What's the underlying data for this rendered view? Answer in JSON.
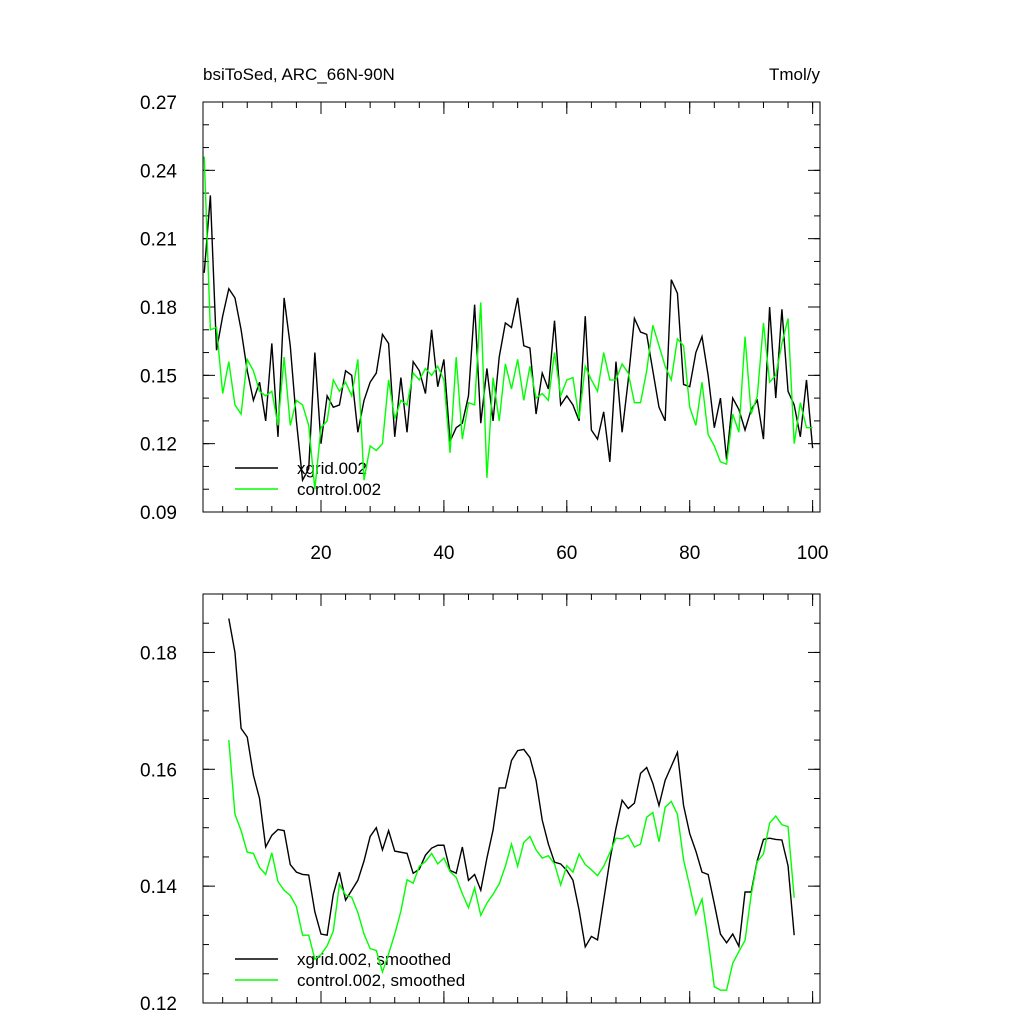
{
  "chart_data": [
    {
      "type": "line",
      "title": "bsiToSed, ARC_66N-90N",
      "right_title": "Tmol/y",
      "x": [
        1,
        2,
        3,
        4,
        5,
        6,
        7,
        8,
        9,
        10,
        11,
        12,
        13,
        14,
        15,
        16,
        17,
        18,
        19,
        20,
        21,
        22,
        23,
        24,
        25,
        26,
        27,
        28,
        29,
        30,
        31,
        32,
        33,
        34,
        35,
        36,
        37,
        38,
        39,
        40,
        41,
        42,
        43,
        44,
        45,
        46,
        47,
        48,
        49,
        50,
        51,
        52,
        53,
        54,
        55,
        56,
        57,
        58,
        59,
        60,
        61,
        62,
        63,
        64,
        65,
        66,
        67,
        68,
        69,
        70,
        71,
        72,
        73,
        74,
        75,
        76,
        77,
        78,
        79,
        80,
        81,
        82,
        83,
        84,
        85,
        86,
        87,
        88,
        89,
        90,
        91,
        92,
        93,
        94,
        95,
        96,
        97,
        98,
        99,
        100
      ],
      "series": [
        {
          "name": "xgrid.002",
          "color": "#000000",
          "values": [
            0.195,
            0.229,
            0.161,
            0.176,
            0.188,
            0.184,
            0.17,
            0.152,
            0.139,
            0.147,
            0.13,
            0.164,
            0.123,
            0.184,
            0.163,
            0.13,
            0.104,
            0.109,
            0.16,
            0.12,
            0.141,
            0.136,
            0.137,
            0.152,
            0.15,
            0.125,
            0.139,
            0.147,
            0.151,
            0.168,
            0.164,
            0.123,
            0.149,
            0.125,
            0.156,
            0.152,
            0.142,
            0.17,
            0.145,
            0.157,
            0.121,
            0.127,
            0.129,
            0.141,
            0.181,
            0.129,
            0.153,
            0.13,
            0.158,
            0.173,
            0.171,
            0.184,
            0.163,
            0.162,
            0.133,
            0.151,
            0.144,
            0.174,
            0.137,
            0.141,
            0.137,
            0.13,
            0.176,
            0.126,
            0.122,
            0.134,
            0.112,
            0.156,
            0.125,
            0.148,
            0.175,
            0.169,
            0.168,
            0.152,
            0.136,
            0.13,
            0.192,
            0.186,
            0.146,
            0.145,
            0.16,
            0.167,
            0.15,
            0.127,
            0.14,
            0.113,
            0.14,
            0.135,
            0.126,
            0.135,
            0.139,
            0.122,
            0.18,
            0.14,
            0.179,
            0.143,
            0.137,
            0.123,
            0.148,
            0.118
          ]
        },
        {
          "name": "control.002",
          "color": "#00ff00",
          "values": [
            0.246,
            0.17,
            0.171,
            0.142,
            0.156,
            0.137,
            0.133,
            0.157,
            0.152,
            0.143,
            0.141,
            0.143,
            0.128,
            0.158,
            0.128,
            0.139,
            0.137,
            0.128,
            0.1,
            0.127,
            0.13,
            0.148,
            0.143,
            0.147,
            0.141,
            0.157,
            0.104,
            0.119,
            0.117,
            0.12,
            0.148,
            0.131,
            0.139,
            0.137,
            0.151,
            0.148,
            0.153,
            0.15,
            0.154,
            0.148,
            0.116,
            0.158,
            0.122,
            0.138,
            0.137,
            0.182,
            0.105,
            0.149,
            0.13,
            0.155,
            0.144,
            0.157,
            0.139,
            0.154,
            0.14,
            0.142,
            0.139,
            0.16,
            0.141,
            0.148,
            0.149,
            0.131,
            0.154,
            0.148,
            0.143,
            0.16,
            0.148,
            0.148,
            0.155,
            0.151,
            0.138,
            0.138,
            0.152,
            0.172,
            0.163,
            0.154,
            0.148,
            0.166,
            0.163,
            0.136,
            0.128,
            0.147,
            0.124,
            0.119,
            0.112,
            0.111,
            0.133,
            0.125,
            0.167,
            0.133,
            0.141,
            0.173,
            0.147,
            0.15,
            0.164,
            0.175,
            0.12,
            0.138,
            0.127,
            0.127
          ]
        }
      ],
      "xlim": [
        0.8,
        101.2
      ],
      "ylim": [
        0.09,
        0.27
      ],
      "xticks": [
        20,
        40,
        60,
        80,
        100
      ],
      "yticks": [
        0.09,
        0.12,
        0.15,
        0.18,
        0.21,
        0.24,
        0.27
      ],
      "xtick_labels": true,
      "legend": "lower left"
    },
    {
      "type": "line",
      "x": [
        5,
        6,
        7,
        8,
        9,
        10,
        11,
        12,
        13,
        14,
        15,
        16,
        17,
        18,
        19,
        20,
        21,
        22,
        23,
        24,
        25,
        26,
        27,
        28,
        29,
        30,
        31,
        32,
        33,
        34,
        35,
        36,
        37,
        38,
        39,
        40,
        41,
        42,
        43,
        44,
        45,
        46,
        47,
        48,
        49,
        50,
        51,
        52,
        53,
        54,
        55,
        56,
        57,
        58,
        59,
        60,
        61,
        62,
        63,
        64,
        65,
        66,
        67,
        68,
        69,
        70,
        71,
        72,
        73,
        74,
        75,
        76,
        77,
        78,
        79,
        80,
        81,
        82,
        83,
        84,
        85,
        86,
        87,
        88,
        89,
        90,
        91,
        92,
        93,
        94,
        95,
        96,
        97
      ],
      "series": [
        {
          "name": "xgrid.002, smoothed",
          "color": "#000000",
          "values": [
            0.1858,
            0.18,
            0.167,
            0.1655,
            0.159,
            0.155,
            0.1467,
            0.1487,
            0.1497,
            0.1495,
            0.1437,
            0.1424,
            0.142,
            0.1419,
            0.1356,
            0.1318,
            0.1316,
            0.1386,
            0.1424,
            0.1376,
            0.1393,
            0.141,
            0.1443,
            0.1485,
            0.15,
            0.1462,
            0.1495,
            0.146,
            0.1458,
            0.1456,
            0.1422,
            0.1429,
            0.1453,
            0.1465,
            0.147,
            0.147,
            0.1427,
            0.1422,
            0.1467,
            0.141,
            0.142,
            0.1393,
            0.1448,
            0.1496,
            0.1568,
            0.1568,
            0.1615,
            0.1632,
            0.1634,
            0.162,
            0.1581,
            0.1513,
            0.1472,
            0.1441,
            0.1438,
            0.1427,
            0.141,
            0.1359,
            0.1296,
            0.1314,
            0.1308,
            0.1376,
            0.1444,
            0.1499,
            0.1547,
            0.1533,
            0.1542,
            0.1593,
            0.1603,
            0.1576,
            0.1538,
            0.1581,
            0.1605,
            0.1629,
            0.1538,
            0.149,
            0.146,
            0.1424,
            0.142,
            0.137,
            0.1318,
            0.1303,
            0.1318,
            0.1297,
            0.139,
            0.139,
            0.1444,
            0.148,
            0.1482,
            0.148,
            0.1479,
            0.1435,
            0.1316
          ]
        },
        {
          "name": "control.002, smoothed",
          "color": "#00ff00",
          "values": [
            0.165,
            0.1523,
            0.1495,
            0.1458,
            0.1456,
            0.1432,
            0.142,
            0.1457,
            0.1408,
            0.1393,
            0.1384,
            0.1365,
            0.1316,
            0.1316,
            0.1275,
            0.1283,
            0.1298,
            0.1323,
            0.1403,
            0.1385,
            0.1381,
            0.1355,
            0.1318,
            0.1293,
            0.129,
            0.1253,
            0.1284,
            0.1318,
            0.1357,
            0.1411,
            0.1405,
            0.1434,
            0.1442,
            0.1456,
            0.1438,
            0.1448,
            0.1425,
            0.1415,
            0.1387,
            0.1363,
            0.1397,
            0.135,
            0.1371,
            0.1386,
            0.1404,
            0.1434,
            0.1472,
            0.1434,
            0.1475,
            0.1485,
            0.1462,
            0.1448,
            0.1452,
            0.1438,
            0.1402,
            0.1435,
            0.1424,
            0.1455,
            0.1437,
            0.1428,
            0.1418,
            0.1434,
            0.1457,
            0.1482,
            0.1481,
            0.1487,
            0.1467,
            0.1472,
            0.1518,
            0.1526,
            0.1476,
            0.1535,
            0.1545,
            0.1523,
            0.1445,
            0.14,
            0.1352,
            0.1378,
            0.1308,
            0.1228,
            0.1222,
            0.1222,
            0.1268,
            0.1288,
            0.1307,
            0.1385,
            0.1442,
            0.1455,
            0.1508,
            0.152,
            0.1505,
            0.1502,
            0.138
          ]
        }
      ],
      "xlim": [
        0.8,
        101.2
      ],
      "ylim": [
        0.12,
        0.19
      ],
      "xticks": [
        20,
        40,
        60,
        80,
        100
      ],
      "yticks": [
        0.12,
        0.14,
        0.16,
        0.18
      ],
      "xtick_labels": false,
      "legend": "lower left"
    }
  ]
}
